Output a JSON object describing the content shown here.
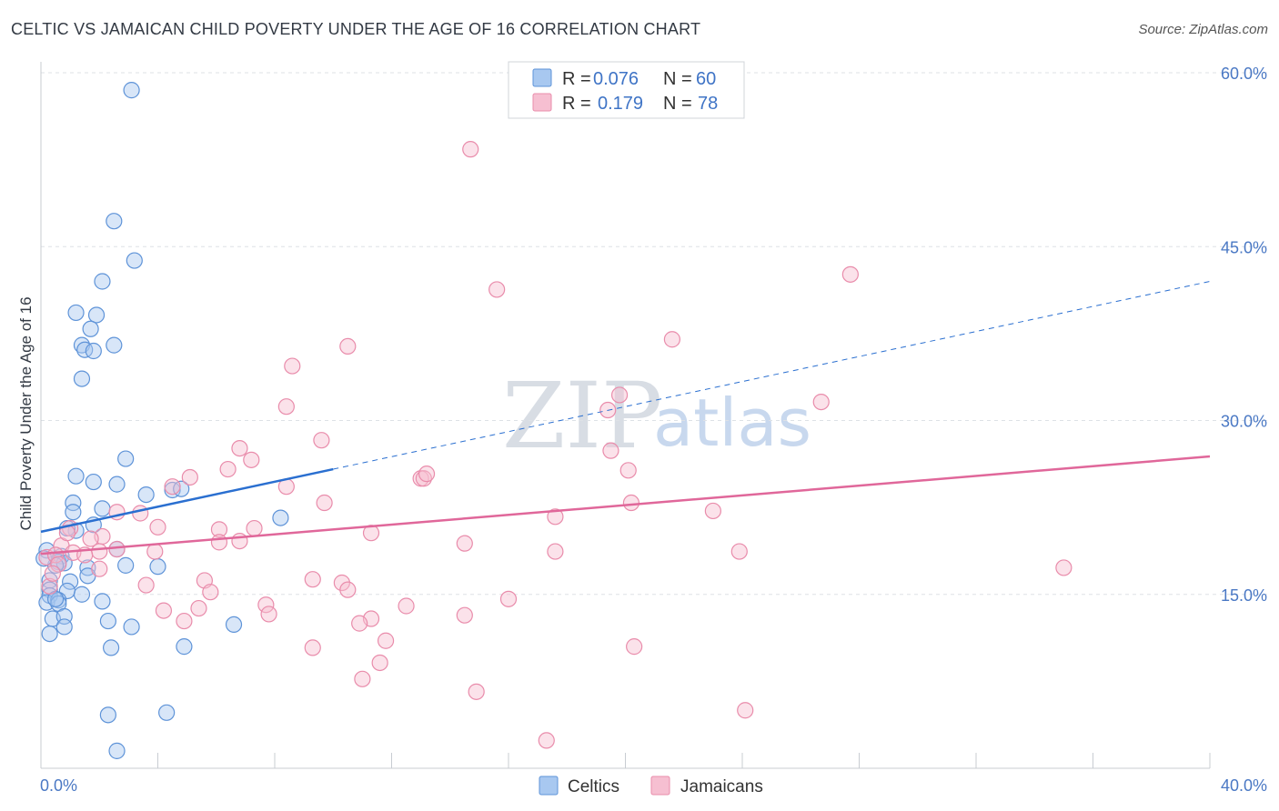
{
  "title": "CELTIC VS JAMAICAN CHILD POVERTY UNDER THE AGE OF 16 CORRELATION CHART",
  "source": "Source: ZipAtlas.com",
  "watermark": {
    "zip": "ZIP",
    "atlas": "atlas"
  },
  "colors": {
    "celtics_fill": "#a8c8f0",
    "celtics_stroke": "#5e93d8",
    "celtics_line": "#2a6fd0",
    "jamaicans_fill": "#f6bfd1",
    "jamaicans_stroke": "#e98cab",
    "jamaicans_line": "#e0679a",
    "tick_label": "#4a78c4"
  },
  "legend": {
    "rows": [
      {
        "r_label": "R =",
        "r_value": "0.076",
        "n_label": "N =",
        "n_value": "60"
      },
      {
        "r_label": "R =",
        "r_value": "0.179",
        "n_label": "N =",
        "n_value": "78"
      }
    ]
  },
  "bottom_legend": [
    "Celtics",
    "Jamaicans"
  ],
  "chart_data": {
    "type": "scatter",
    "title": "CELTIC VS JAMAICAN CHILD POVERTY UNDER THE AGE OF 16 CORRELATION CHART",
    "xlabel": "",
    "ylabel": "Child Poverty Under the Age of 16",
    "xlim": [
      0,
      40
    ],
    "ylim": [
      0,
      60
    ],
    "x_tick_labels": [
      "0.0%",
      "40.0%"
    ],
    "y_ticks": [
      15,
      30,
      45,
      60
    ],
    "y_tick_labels": [
      "15.0%",
      "30.0%",
      "45.0%",
      "60.0%"
    ],
    "grid": true,
    "legend_position": "top-center",
    "series": [
      {
        "name": "Celtics",
        "r": 0.076,
        "n": 60,
        "trend": {
          "x": [
            0,
            10.0
          ],
          "y": [
            20.4,
            25.8
          ],
          "dashed_to": [
            40,
            42.0
          ]
        },
        "points": [
          [
            3.1,
            58.5
          ],
          [
            2.5,
            47.2
          ],
          [
            3.2,
            43.8
          ],
          [
            2.1,
            42.0
          ],
          [
            1.2,
            39.3
          ],
          [
            1.9,
            39.1
          ],
          [
            1.7,
            37.9
          ],
          [
            1.4,
            36.5
          ],
          [
            2.5,
            36.5
          ],
          [
            1.5,
            36.1
          ],
          [
            1.8,
            36.0
          ],
          [
            1.4,
            33.6
          ],
          [
            2.9,
            26.7
          ],
          [
            1.2,
            25.2
          ],
          [
            2.6,
            24.5
          ],
          [
            1.8,
            24.7
          ],
          [
            3.6,
            23.6
          ],
          [
            4.5,
            24.0
          ],
          [
            1.1,
            22.9
          ],
          [
            2.1,
            22.4
          ],
          [
            1.1,
            22.1
          ],
          [
            1.2,
            20.5
          ],
          [
            1.8,
            21.0
          ],
          [
            0.9,
            20.7
          ],
          [
            8.2,
            21.6
          ],
          [
            0.2,
            18.8
          ],
          [
            0.7,
            18.3
          ],
          [
            0.6,
            17.8
          ],
          [
            0.8,
            17.7
          ],
          [
            2.6,
            18.9
          ],
          [
            0.5,
            17.5
          ],
          [
            1.6,
            17.3
          ],
          [
            2.9,
            17.5
          ],
          [
            4.0,
            17.4
          ],
          [
            0.3,
            16.2
          ],
          [
            1.0,
            16.1
          ],
          [
            1.6,
            16.6
          ],
          [
            0.3,
            15.4
          ],
          [
            0.9,
            15.3
          ],
          [
            0.3,
            14.9
          ],
          [
            1.4,
            15.0
          ],
          [
            0.2,
            14.3
          ],
          [
            0.6,
            14.5
          ],
          [
            0.6,
            14.2
          ],
          [
            2.1,
            14.4
          ],
          [
            0.4,
            12.9
          ],
          [
            0.8,
            13.1
          ],
          [
            2.3,
            12.7
          ],
          [
            0.8,
            12.2
          ],
          [
            3.1,
            12.2
          ],
          [
            0.3,
            11.6
          ],
          [
            6.6,
            12.4
          ],
          [
            2.4,
            10.4
          ],
          [
            4.9,
            10.5
          ],
          [
            2.3,
            4.6
          ],
          [
            4.3,
            4.8
          ],
          [
            2.6,
            1.5
          ],
          [
            0.1,
            18.1
          ],
          [
            0.5,
            14.6
          ],
          [
            4.8,
            24.1
          ]
        ]
      },
      {
        "name": "Jamaicans",
        "r": 0.179,
        "n": 78,
        "trend": {
          "x": [
            0,
            40
          ],
          "y": [
            18.5,
            26.9
          ]
        },
        "points": [
          [
            14.7,
            53.4
          ],
          [
            15.6,
            41.3
          ],
          [
            27.7,
            42.6
          ],
          [
            21.6,
            37.0
          ],
          [
            10.5,
            36.4
          ],
          [
            8.6,
            34.7
          ],
          [
            8.4,
            31.2
          ],
          [
            19.8,
            32.2
          ],
          [
            19.4,
            30.9
          ],
          [
            26.7,
            31.6
          ],
          [
            9.6,
            28.3
          ],
          [
            6.8,
            27.6
          ],
          [
            7.2,
            26.6
          ],
          [
            19.5,
            27.4
          ],
          [
            6.4,
            25.8
          ],
          [
            5.1,
            25.1
          ],
          [
            13.0,
            25.0
          ],
          [
            13.1,
            25.0
          ],
          [
            13.2,
            25.4
          ],
          [
            20.1,
            25.7
          ],
          [
            4.5,
            24.3
          ],
          [
            8.4,
            24.3
          ],
          [
            9.7,
            22.9
          ],
          [
            20.2,
            22.9
          ],
          [
            3.4,
            22.0
          ],
          [
            23.0,
            22.2
          ],
          [
            2.6,
            22.1
          ],
          [
            17.6,
            21.7
          ],
          [
            4.0,
            20.8
          ],
          [
            6.1,
            20.6
          ],
          [
            7.3,
            20.7
          ],
          [
            11.3,
            20.3
          ],
          [
            1.0,
            20.7
          ],
          [
            2.1,
            20.0
          ],
          [
            1.7,
            19.8
          ],
          [
            6.1,
            19.5
          ],
          [
            6.8,
            19.6
          ],
          [
            14.5,
            19.4
          ],
          [
            0.7,
            19.2
          ],
          [
            2.6,
            18.9
          ],
          [
            2.0,
            18.7
          ],
          [
            3.9,
            18.7
          ],
          [
            0.2,
            18.2
          ],
          [
            0.5,
            18.4
          ],
          [
            1.1,
            18.6
          ],
          [
            17.6,
            18.7
          ],
          [
            23.9,
            18.7
          ],
          [
            0.6,
            17.6
          ],
          [
            2.0,
            17.2
          ],
          [
            5.6,
            16.2
          ],
          [
            9.3,
            16.3
          ],
          [
            10.3,
            16.0
          ],
          [
            0.3,
            15.7
          ],
          [
            3.6,
            15.8
          ],
          [
            5.8,
            15.2
          ],
          [
            10.5,
            15.4
          ],
          [
            16.0,
            14.6
          ],
          [
            7.7,
            14.1
          ],
          [
            12.5,
            14.0
          ],
          [
            4.2,
            13.6
          ],
          [
            5.4,
            13.8
          ],
          [
            7.8,
            13.3
          ],
          [
            14.5,
            13.2
          ],
          [
            11.3,
            12.9
          ],
          [
            4.9,
            12.7
          ],
          [
            10.9,
            12.5
          ],
          [
            11.8,
            11.0
          ],
          [
            9.3,
            10.4
          ],
          [
            20.3,
            10.5
          ],
          [
            11.6,
            9.1
          ],
          [
            11.0,
            7.7
          ],
          [
            14.9,
            6.6
          ],
          [
            24.1,
            5.0
          ],
          [
            17.3,
            2.4
          ],
          [
            35.0,
            17.3
          ],
          [
            0.9,
            20.3
          ],
          [
            1.5,
            18.4
          ],
          [
            0.4,
            16.8
          ]
        ]
      }
    ]
  }
}
